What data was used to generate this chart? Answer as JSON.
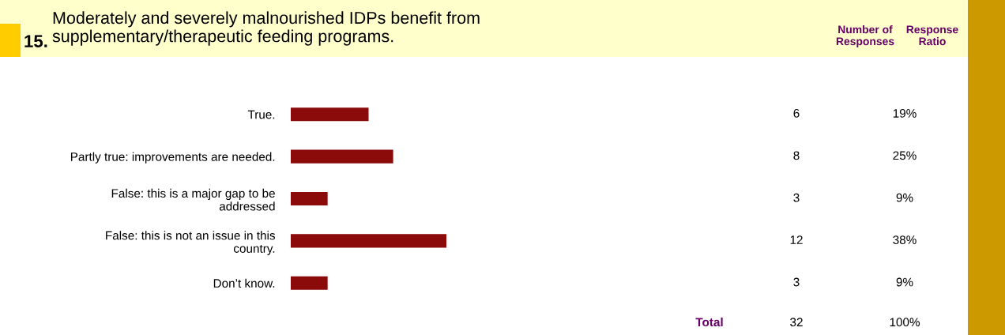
{
  "chart_data": {
    "type": "bar",
    "orientation": "horizontal",
    "title": "Moderately and severely malnourished IDPs benefit from\nsupplementary/therapeutic feeding programs.",
    "categories": [
      "True.",
      "Partly true: improvements are needed.",
      "False: this is a major gap to be\naddressed",
      "False: this is not an issue in this\ncountry.",
      "Don’t know."
    ],
    "series": [
      {
        "color": "#8b0a0a",
        "values": [
          19,
          25,
          9,
          38,
          9
        ],
        "value_labels": [
          "19%",
          "25%",
          "9%",
          "38%",
          "9%"
        ]
      }
    ],
    "annotations": [
      "15.",
      "Number of\nResponses",
      "Response\nRatio",
      "Total",
      "32",
      "100%",
      "6",
      "8",
      "3",
      "12",
      "3"
    ]
  }
}
